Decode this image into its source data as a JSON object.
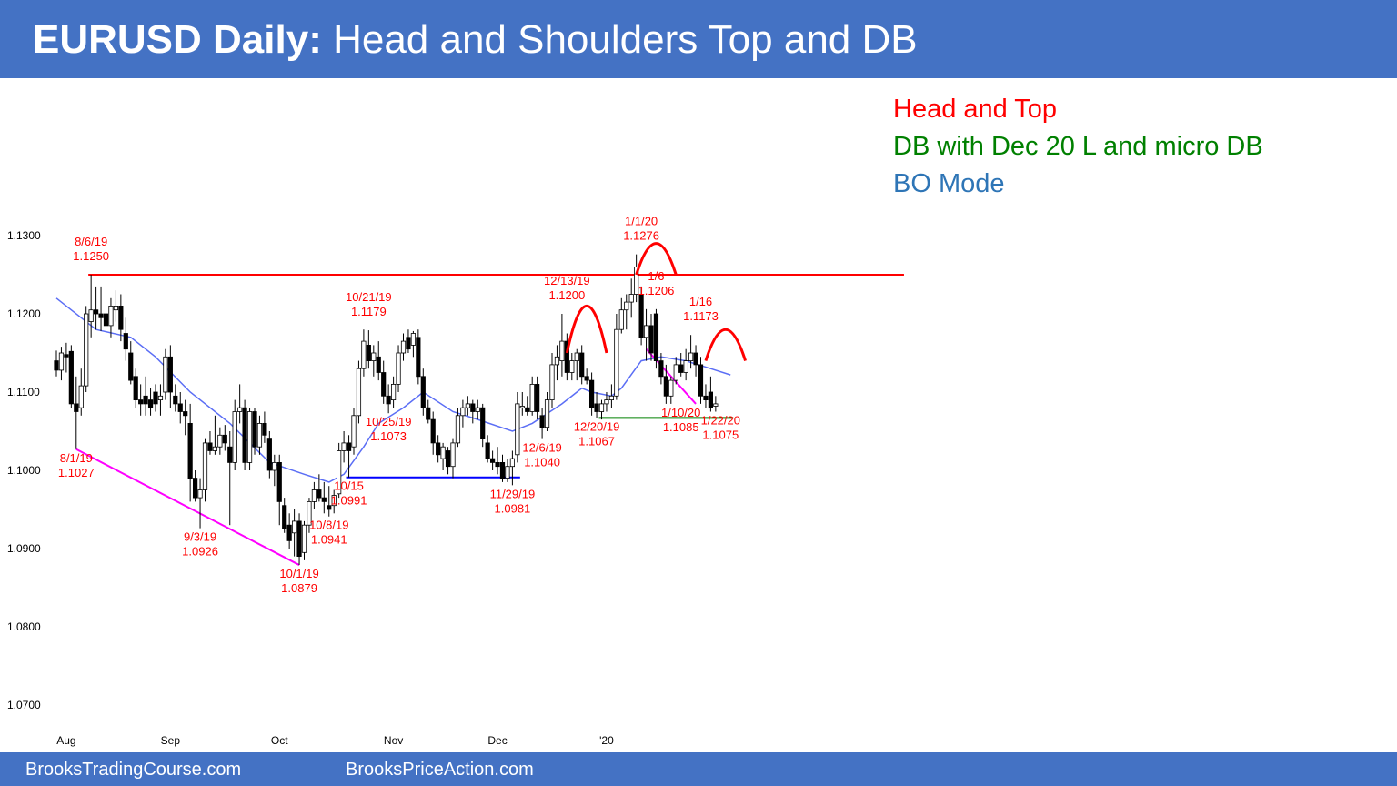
{
  "header": {
    "title_bold": "EURUSD Daily:",
    "title_rest": " Head and Shoulders Top and DB"
  },
  "notes": {
    "line1": "Head and Top",
    "line2": "DB with Dec 20 L and micro DB",
    "line3": "BO Mode"
  },
  "footer": {
    "left": "BrooksTradingCourse.com",
    "right": "BrooksPriceAction.com"
  },
  "colors": {
    "header_bg": "#4472c4",
    "note_red": "#ff0000",
    "note_green": "#008000",
    "note_blue": "#2e75b6",
    "ema": "#5b6ef5",
    "trendline_magenta": "#ff00ff",
    "support_blue": "#0000ff",
    "support_green": "#008000",
    "resistance_red": "#ff0000",
    "bull_body": "#ffffff",
    "bear_body": "#000000"
  },
  "chart_data": {
    "type": "candlestick",
    "instrument": "EURUSD Daily",
    "y_ticks": [
      "1.1300",
      "1.1200",
      "1.1100",
      "1.1000",
      "1.0900",
      "1.0800",
      "1.0700"
    ],
    "ylim": [
      1.0665,
      1.1345
    ],
    "grid": false,
    "month_labels": [
      {
        "label": "Aug",
        "bar": 2
      },
      {
        "label": "Sep",
        "bar": 23
      },
      {
        "label": "Oct",
        "bar": 45
      },
      {
        "label": "Nov",
        "bar": 68
      },
      {
        "label": "Dec",
        "bar": 89
      },
      {
        "label": "'20",
        "bar": 111
      }
    ],
    "candles": [
      [
        1.114,
        1.1153,
        1.112,
        1.1128
      ],
      [
        1.1128,
        1.1158,
        1.1115,
        1.115
      ],
      [
        1.1148,
        1.1163,
        1.1125,
        1.1145
      ],
      [
        1.1152,
        1.116,
        1.108,
        1.1085
      ],
      [
        1.1085,
        1.112,
        1.1027,
        1.1075
      ],
      [
        1.108,
        1.113,
        1.107,
        1.1108
      ],
      [
        1.1108,
        1.121,
        1.11,
        1.12
      ],
      [
        1.119,
        1.125,
        1.117,
        1.1205
      ],
      [
        1.1205,
        1.1235,
        1.118,
        1.12
      ],
      [
        1.12,
        1.1235,
        1.1178,
        1.1195
      ],
      [
        1.12,
        1.1225,
        1.118,
        1.1185
      ],
      [
        1.1185,
        1.122,
        1.117,
        1.121
      ],
      [
        1.1205,
        1.123,
        1.119,
        1.121
      ],
      [
        1.121,
        1.1225,
        1.1165,
        1.118
      ],
      [
        1.1175,
        1.1195,
        1.114,
        1.1155
      ],
      [
        1.115,
        1.1165,
        1.111,
        1.1115
      ],
      [
        1.112,
        1.113,
        1.108,
        1.109
      ],
      [
        1.109,
        1.111,
        1.107,
        1.1085
      ],
      [
        1.1095,
        1.112,
        1.107,
        1.1085
      ],
      [
        1.109,
        1.1105,
        1.107,
        1.108
      ],
      [
        1.11,
        1.111,
        1.1075,
        1.1085
      ],
      [
        1.109,
        1.111,
        1.107,
        1.1095
      ],
      [
        1.11,
        1.1155,
        1.109,
        1.1145
      ],
      [
        1.1145,
        1.116,
        1.108,
        1.11
      ],
      [
        1.1095,
        1.111,
        1.1075,
        1.1085
      ],
      [
        1.1085,
        1.11,
        1.106,
        1.1075
      ],
      [
        1.1075,
        1.109,
        1.1045,
        1.107
      ],
      [
        1.106,
        1.1085,
        1.096,
        1.099
      ],
      [
        1.099,
        1.1,
        1.096,
        1.0965
      ],
      [
        1.0965,
        1.099,
        1.0926,
        1.0975
      ],
      [
        1.0975,
        1.104,
        1.096,
        1.1035
      ],
      [
        1.1035,
        1.105,
        1.102,
        1.1025
      ],
      [
        1.1025,
        1.107,
        1.102,
        1.103
      ],
      [
        1.103,
        1.1055,
        1.102,
        1.1045
      ],
      [
        1.1045,
        1.1058,
        1.1025,
        1.1035
      ],
      [
        1.103,
        1.105,
        1.093,
        1.101
      ],
      [
        1.101,
        1.109,
        1.1,
        1.1075
      ],
      [
        1.1075,
        1.111,
        1.106,
        1.108
      ],
      [
        1.108,
        1.109,
        1.1,
        1.101
      ],
      [
        1.101,
        1.108,
        1.1,
        1.1075
      ],
      [
        1.1075,
        1.108,
        1.102,
        1.103
      ],
      [
        1.103,
        1.107,
        1.102,
        1.106
      ],
      [
        1.106,
        1.1075,
        1.1035,
        1.1045
      ],
      [
        1.104,
        1.105,
        1.099,
        1.1
      ],
      [
        1.1,
        1.102,
        1.098,
        1.101
      ],
      [
        1.101,
        1.102,
        1.093,
        1.096
      ],
      [
        1.0955,
        1.0965,
        1.092,
        1.0925
      ],
      [
        1.093,
        1.0945,
        1.09,
        1.091
      ],
      [
        1.092,
        1.095,
        1.089,
        1.0935
      ],
      [
        1.0935,
        1.0945,
        1.0879,
        1.089
      ],
      [
        1.0895,
        1.0935,
        1.0885,
        1.093
      ],
      [
        1.093,
        1.0965,
        1.092,
        1.096
      ],
      [
        1.096,
        1.0985,
        1.095,
        1.0975
      ],
      [
        1.0975,
        1.0995,
        1.096,
        1.0965
      ],
      [
        1.0965,
        1.0985,
        1.0945,
        1.096
      ],
      [
        1.0955,
        1.098,
        1.0941,
        1.095
      ],
      [
        1.0955,
        1.0975,
        1.0945,
        1.0968
      ],
      [
        1.097,
        1.1035,
        1.0965,
        1.1025
      ],
      [
        1.1025,
        1.105,
        1.101,
        1.1035
      ],
      [
        1.1035,
        1.1045,
        1.0991,
        1.1025
      ],
      [
        1.103,
        1.108,
        1.102,
        1.107
      ],
      [
        1.107,
        1.114,
        1.106,
        1.113
      ],
      [
        1.113,
        1.118,
        1.112,
        1.1165
      ],
      [
        1.116,
        1.1179,
        1.113,
        1.114
      ],
      [
        1.114,
        1.116,
        1.112,
        1.115
      ],
      [
        1.1145,
        1.1165,
        1.1115,
        1.1125
      ],
      [
        1.1125,
        1.114,
        1.1085,
        1.1095
      ],
      [
        1.1095,
        1.111,
        1.1073,
        1.1085
      ],
      [
        1.109,
        1.112,
        1.108,
        1.111
      ],
      [
        1.111,
        1.116,
        1.11,
        1.115
      ],
      [
        1.115,
        1.1175,
        1.114,
        1.1165
      ],
      [
        1.117,
        1.118,
        1.115,
        1.1155
      ],
      [
        1.116,
        1.1178,
        1.1145,
        1.1175
      ],
      [
        1.117,
        1.118,
        1.111,
        1.112
      ],
      [
        1.112,
        1.113,
        1.107,
        1.108
      ],
      [
        1.108,
        1.109,
        1.106,
        1.1065
      ],
      [
        1.1065,
        1.1075,
        1.102,
        1.1035
      ],
      [
        1.1035,
        1.1045,
        1.101,
        1.102
      ],
      [
        1.1015,
        1.1035,
        1.1,
        1.103
      ],
      [
        1.1025,
        1.103,
        1.0995,
        1.1005
      ],
      [
        1.1005,
        1.104,
        1.099,
        1.1035
      ],
      [
        1.1035,
        1.108,
        1.103,
        1.107
      ],
      [
        1.107,
        1.109,
        1.1055,
        1.108
      ],
      [
        1.108,
        1.1095,
        1.107,
        1.1085
      ],
      [
        1.1085,
        1.109,
        1.106,
        1.1075
      ],
      [
        1.1075,
        1.109,
        1.1065,
        1.108
      ],
      [
        1.108,
        1.1085,
        1.103,
        1.104
      ],
      [
        1.1035,
        1.1045,
        1.101,
        1.1015
      ],
      [
        1.1015,
        1.1025,
        1.1,
        1.101
      ],
      [
        1.101,
        1.103,
        1.0995,
        1.1005
      ],
      [
        1.101,
        1.102,
        1.0985,
        1.099
      ],
      [
        1.099,
        1.1015,
        1.0985,
        1.1005
      ],
      [
        1.1005,
        1.1025,
        1.0981,
        1.1015
      ],
      [
        1.102,
        1.11,
        1.101,
        1.1085
      ],
      [
        1.108,
        1.11,
        1.107,
        1.1082
      ],
      [
        1.108,
        1.1095,
        1.107,
        1.1075
      ],
      [
        1.1075,
        1.112,
        1.107,
        1.111
      ],
      [
        1.111,
        1.112,
        1.1065,
        1.1075
      ],
      [
        1.107,
        1.108,
        1.104,
        1.1055
      ],
      [
        1.1055,
        1.11,
        1.105,
        1.109
      ],
      [
        1.109,
        1.115,
        1.108,
        1.1135
      ],
      [
        1.1135,
        1.116,
        1.1115,
        1.1145
      ],
      [
        1.114,
        1.12,
        1.112,
        1.1165
      ],
      [
        1.1165,
        1.1175,
        1.1115,
        1.1125
      ],
      [
        1.1125,
        1.115,
        1.1115,
        1.114
      ],
      [
        1.114,
        1.1155,
        1.1115,
        1.115
      ],
      [
        1.115,
        1.116,
        1.111,
        1.112
      ],
      [
        1.112,
        1.113,
        1.111,
        1.1115
      ],
      [
        1.1115,
        1.1125,
        1.107,
        1.108
      ],
      [
        1.1085,
        1.11,
        1.1067,
        1.1075
      ],
      [
        1.1075,
        1.109,
        1.1065,
        1.1085
      ],
      [
        1.1085,
        1.11,
        1.1075,
        1.109
      ],
      [
        1.109,
        1.111,
        1.108,
        1.1095
      ],
      [
        1.1095,
        1.12,
        1.109,
        1.118
      ],
      [
        1.118,
        1.122,
        1.1175,
        1.1205
      ],
      [
        1.1205,
        1.1225,
        1.118,
        1.1215
      ],
      [
        1.1215,
        1.1245,
        1.1195,
        1.1225
      ],
      [
        1.1225,
        1.1276,
        1.1215,
        1.126
      ],
      [
        1.1225,
        1.1235,
        1.116,
        1.117
      ],
      [
        1.117,
        1.1206,
        1.114,
        1.1185
      ],
      [
        1.1185,
        1.12,
        1.114,
        1.115
      ],
      [
        1.12,
        1.1206,
        1.113,
        1.114
      ],
      [
        1.114,
        1.115,
        1.111,
        1.112
      ],
      [
        1.112,
        1.1135,
        1.1085,
        1.1095
      ],
      [
        1.1095,
        1.112,
        1.1085,
        1.1115
      ],
      [
        1.1115,
        1.1145,
        1.111,
        1.1135
      ],
      [
        1.1135,
        1.115,
        1.112,
        1.1125
      ],
      [
        1.1125,
        1.1155,
        1.1115,
        1.114
      ],
      [
        1.114,
        1.1173,
        1.113,
        1.115
      ],
      [
        1.115,
        1.116,
        1.112,
        1.1135
      ],
      [
        1.1135,
        1.1145,
        1.1085,
        1.1095
      ],
      [
        1.1095,
        1.111,
        1.108,
        1.109
      ],
      [
        1.11,
        1.112,
        1.1075,
        1.108
      ],
      [
        1.1082,
        1.1095,
        1.1075,
        1.1085
      ]
    ],
    "ema": [
      [
        0,
        1.122
      ],
      [
        5,
        1.1195
      ],
      [
        8,
        1.118
      ],
      [
        15,
        1.117
      ],
      [
        20,
        1.1145
      ],
      [
        27,
        1.11
      ],
      [
        35,
        1.106
      ],
      [
        43,
        1.101
      ],
      [
        50,
        1.0995
      ],
      [
        55,
        1.0985
      ],
      [
        58,
        1.0995
      ],
      [
        62,
        1.103
      ],
      [
        65,
        1.106
      ],
      [
        70,
        1.108
      ],
      [
        74,
        1.11
      ],
      [
        80,
        1.1075
      ],
      [
        85,
        1.1065
      ],
      [
        92,
        1.105
      ],
      [
        96,
        1.106
      ],
      [
        102,
        1.1085
      ],
      [
        106,
        1.1105
      ],
      [
        108,
        1.11
      ],
      [
        112,
        1.1095
      ],
      [
        114,
        1.1105
      ],
      [
        118,
        1.114
      ],
      [
        122,
        1.1145
      ],
      [
        127,
        1.114
      ],
      [
        132,
        1.113
      ],
      [
        136,
        1.1122
      ]
    ],
    "levels": [
      {
        "price": 1.125,
        "from_bar": 7,
        "to_extra": 38,
        "color": "#ff0000",
        "label": "resistance 1.1250"
      },
      {
        "price": 1.0991,
        "from_bar": 59,
        "to_bar": 93,
        "color": "#0000ff",
        "label": "support 1.0991"
      },
      {
        "price": 1.1067,
        "from_bar": 110,
        "to_bar": 136,
        "color": "#008000",
        "label": "support 1.1067"
      }
    ],
    "trendlines": [
      {
        "from": [
          4,
          1.1027
        ],
        "to": [
          49,
          1.0879
        ],
        "color": "#ff00ff"
      },
      {
        "from": [
          119,
          1.1155
        ],
        "to": [
          129,
          1.1085
        ],
        "color": "#ff00ff"
      }
    ],
    "arcs": [
      {
        "from_bar": 103,
        "to_bar": 111,
        "base": 1.115,
        "peak": 1.121
      },
      {
        "from_bar": 117,
        "to_bar": 125,
        "base": 1.125,
        "peak": 1.129
      },
      {
        "from_bar": 131,
        "to_bar": 139,
        "base": 1.114,
        "peak": 1.118
      }
    ],
    "annotations": [
      {
        "bar": 7,
        "price": 1.125,
        "side": "above",
        "lines": [
          "8/6/19",
          "1.1250"
        ]
      },
      {
        "bar": 4,
        "price": 1.1027,
        "side": "below",
        "lines": [
          "8/1/19",
          "1.1027"
        ]
      },
      {
        "bar": 29,
        "price": 1.0926,
        "side": "below",
        "lines": [
          "9/3/19",
          "1.0926"
        ]
      },
      {
        "bar": 49,
        "price": 1.0879,
        "side": "below",
        "lines": [
          "10/1/19",
          "1.0879"
        ]
      },
      {
        "bar": 55,
        "price": 1.0941,
        "side": "below",
        "lines": [
          "10/8/19",
          "1.0941"
        ]
      },
      {
        "bar": 59,
        "price": 1.0991,
        "side": "below",
        "lines": [
          "10/15",
          "1.0991"
        ]
      },
      {
        "bar": 63,
        "price": 1.1179,
        "side": "above",
        "lines": [
          "10/21/19",
          "1.1179"
        ]
      },
      {
        "bar": 67,
        "price": 1.1073,
        "side": "below",
        "lines": [
          "10/25/19",
          "1.1073"
        ]
      },
      {
        "bar": 92,
        "price": 1.0981,
        "side": "below",
        "lines": [
          "11/29/19",
          "1.0981"
        ]
      },
      {
        "bar": 98,
        "price": 1.104,
        "side": "below",
        "lines": [
          "12/6/19",
          "1.1040"
        ]
      },
      {
        "bar": 103,
        "price": 1.12,
        "side": "above",
        "lines": [
          "12/13/19",
          "1.1200"
        ]
      },
      {
        "bar": 109,
        "price": 1.1067,
        "side": "below",
        "lines": [
          "12/20/19",
          "1.1067"
        ]
      },
      {
        "bar": 118,
        "price": 1.1276,
        "side": "above",
        "lines": [
          "1/1/20",
          "1.1276"
        ]
      },
      {
        "bar": 121,
        "price": 1.1206,
        "side": "above",
        "lines": [
          "1/6",
          "1.1206"
        ]
      },
      {
        "bar": 126,
        "price": 1.1085,
        "side": "below",
        "lines": [
          "1/10/20",
          "1.1085"
        ]
      },
      {
        "bar": 130,
        "price": 1.1173,
        "side": "above",
        "lines": [
          "1/16",
          "1.1173"
        ]
      },
      {
        "bar": 134,
        "price": 1.1075,
        "side": "below",
        "lines": [
          "1/22/20",
          "1.1075"
        ]
      }
    ]
  }
}
